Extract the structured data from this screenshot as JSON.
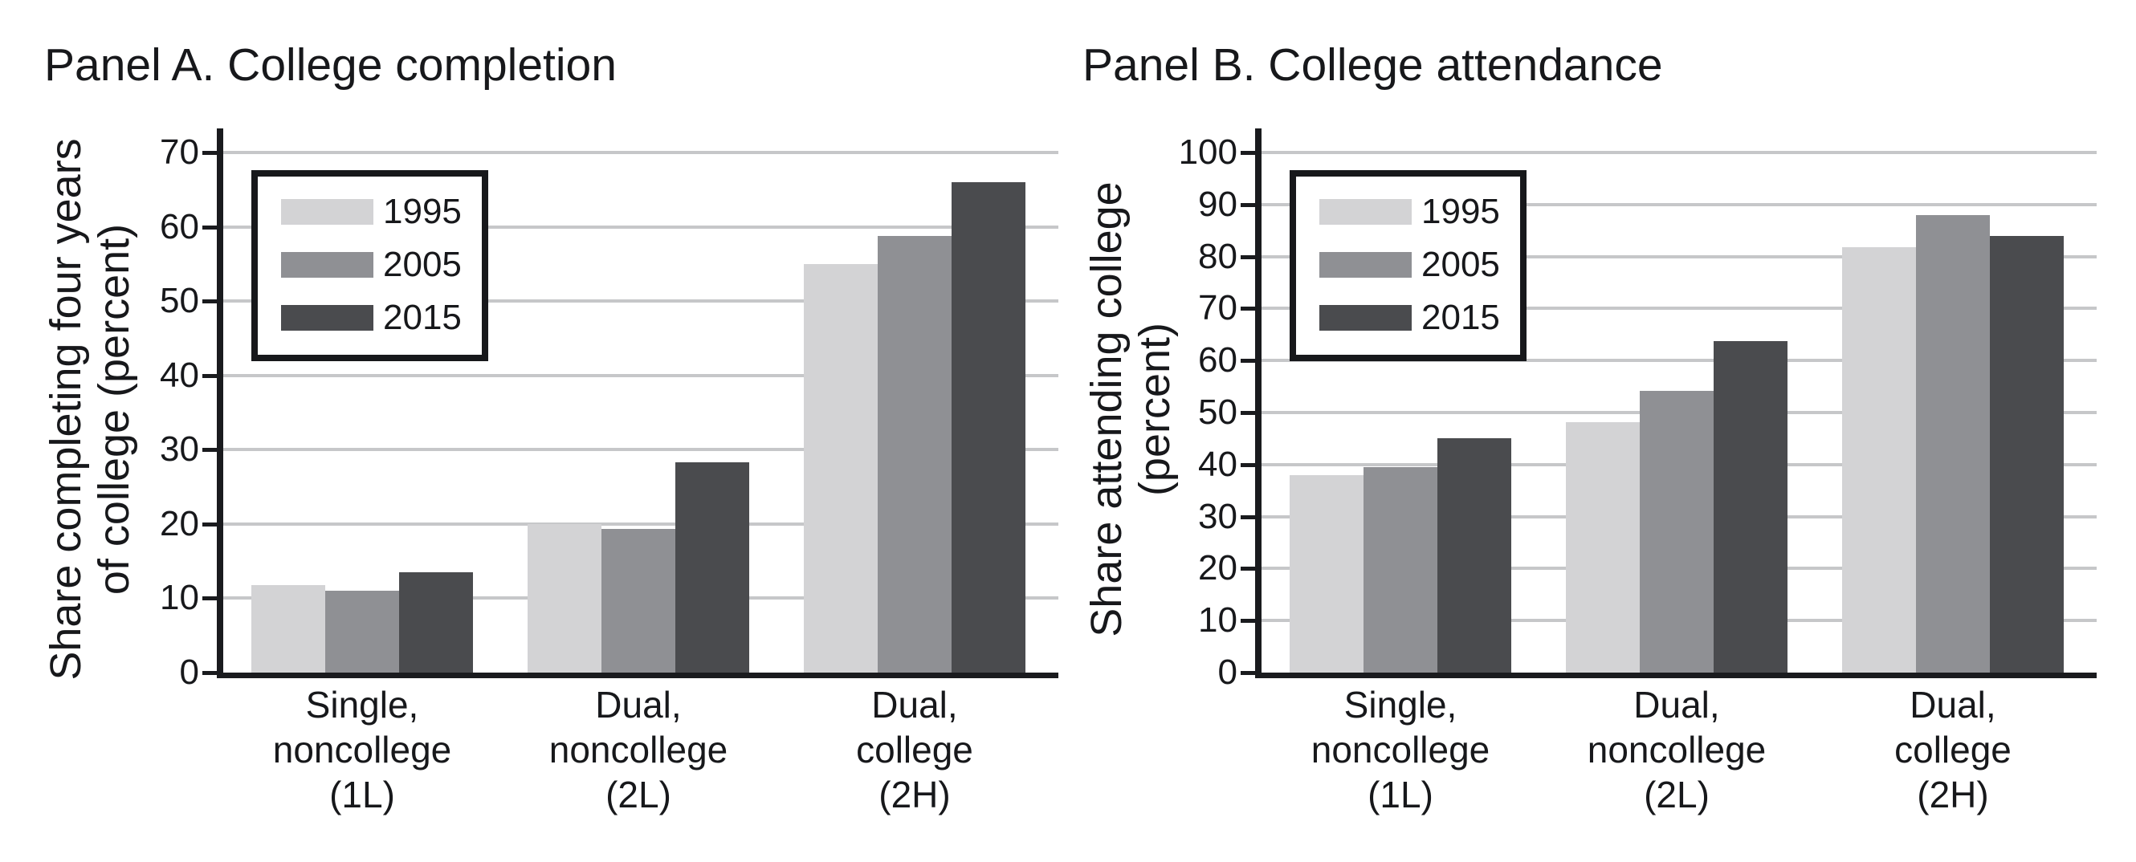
{
  "chart_data": [
    {
      "type": "bar",
      "title": "Panel A. College completion",
      "ylabel": "Share completing four years\nof college (percent)",
      "xlabel": "",
      "ylim": [
        0,
        70
      ],
      "yticks": [
        0,
        10,
        20,
        30,
        40,
        50,
        60,
        70
      ],
      "grid": "horizontal",
      "legend_position": "top-left",
      "categories": [
        "Single,\nnoncollege\n(1L)",
        "Dual,\nnoncollege\n(2L)",
        "Dual,\ncollege\n(2H)"
      ],
      "series": [
        {
          "name": "1995",
          "color": "#d3d3d5",
          "values": [
            11.8,
            20.0,
            55.0
          ]
        },
        {
          "name": "2005",
          "color": "#8f9094",
          "values": [
            11.0,
            19.3,
            58.8
          ]
        },
        {
          "name": "2015",
          "color": "#4a4b4e",
          "values": [
            13.5,
            28.3,
            66.0
          ]
        }
      ]
    },
    {
      "type": "bar",
      "title": "Panel B. College attendance",
      "ylabel": "Share attending college\n(percent)",
      "xlabel": "",
      "ylim": [
        0,
        100
      ],
      "yticks": [
        0,
        10,
        20,
        30,
        40,
        50,
        60,
        70,
        80,
        90,
        100
      ],
      "grid": "horizontal",
      "legend_position": "top-left",
      "categories": [
        "Single,\nnoncollege\n(1L)",
        "Dual,\nnoncollege\n(2L)",
        "Dual,\ncollege\n(2H)"
      ],
      "series": [
        {
          "name": "1995",
          "color": "#d3d3d5",
          "values": [
            38.0,
            48.2,
            81.8
          ]
        },
        {
          "name": "2005",
          "color": "#8f9094",
          "values": [
            39.5,
            54.2,
            88.0
          ]
        },
        {
          "name": "2015",
          "color": "#4a4b4e",
          "values": [
            45.0,
            63.8,
            84.0
          ]
        }
      ]
    }
  ],
  "colors": {
    "series_1995": "#d3d3d5",
    "series_2005": "#8f9094",
    "series_2015": "#4a4b4e",
    "gridline": "#c6c7c9",
    "axis_text": "#17181b",
    "background": "#ffffff"
  }
}
